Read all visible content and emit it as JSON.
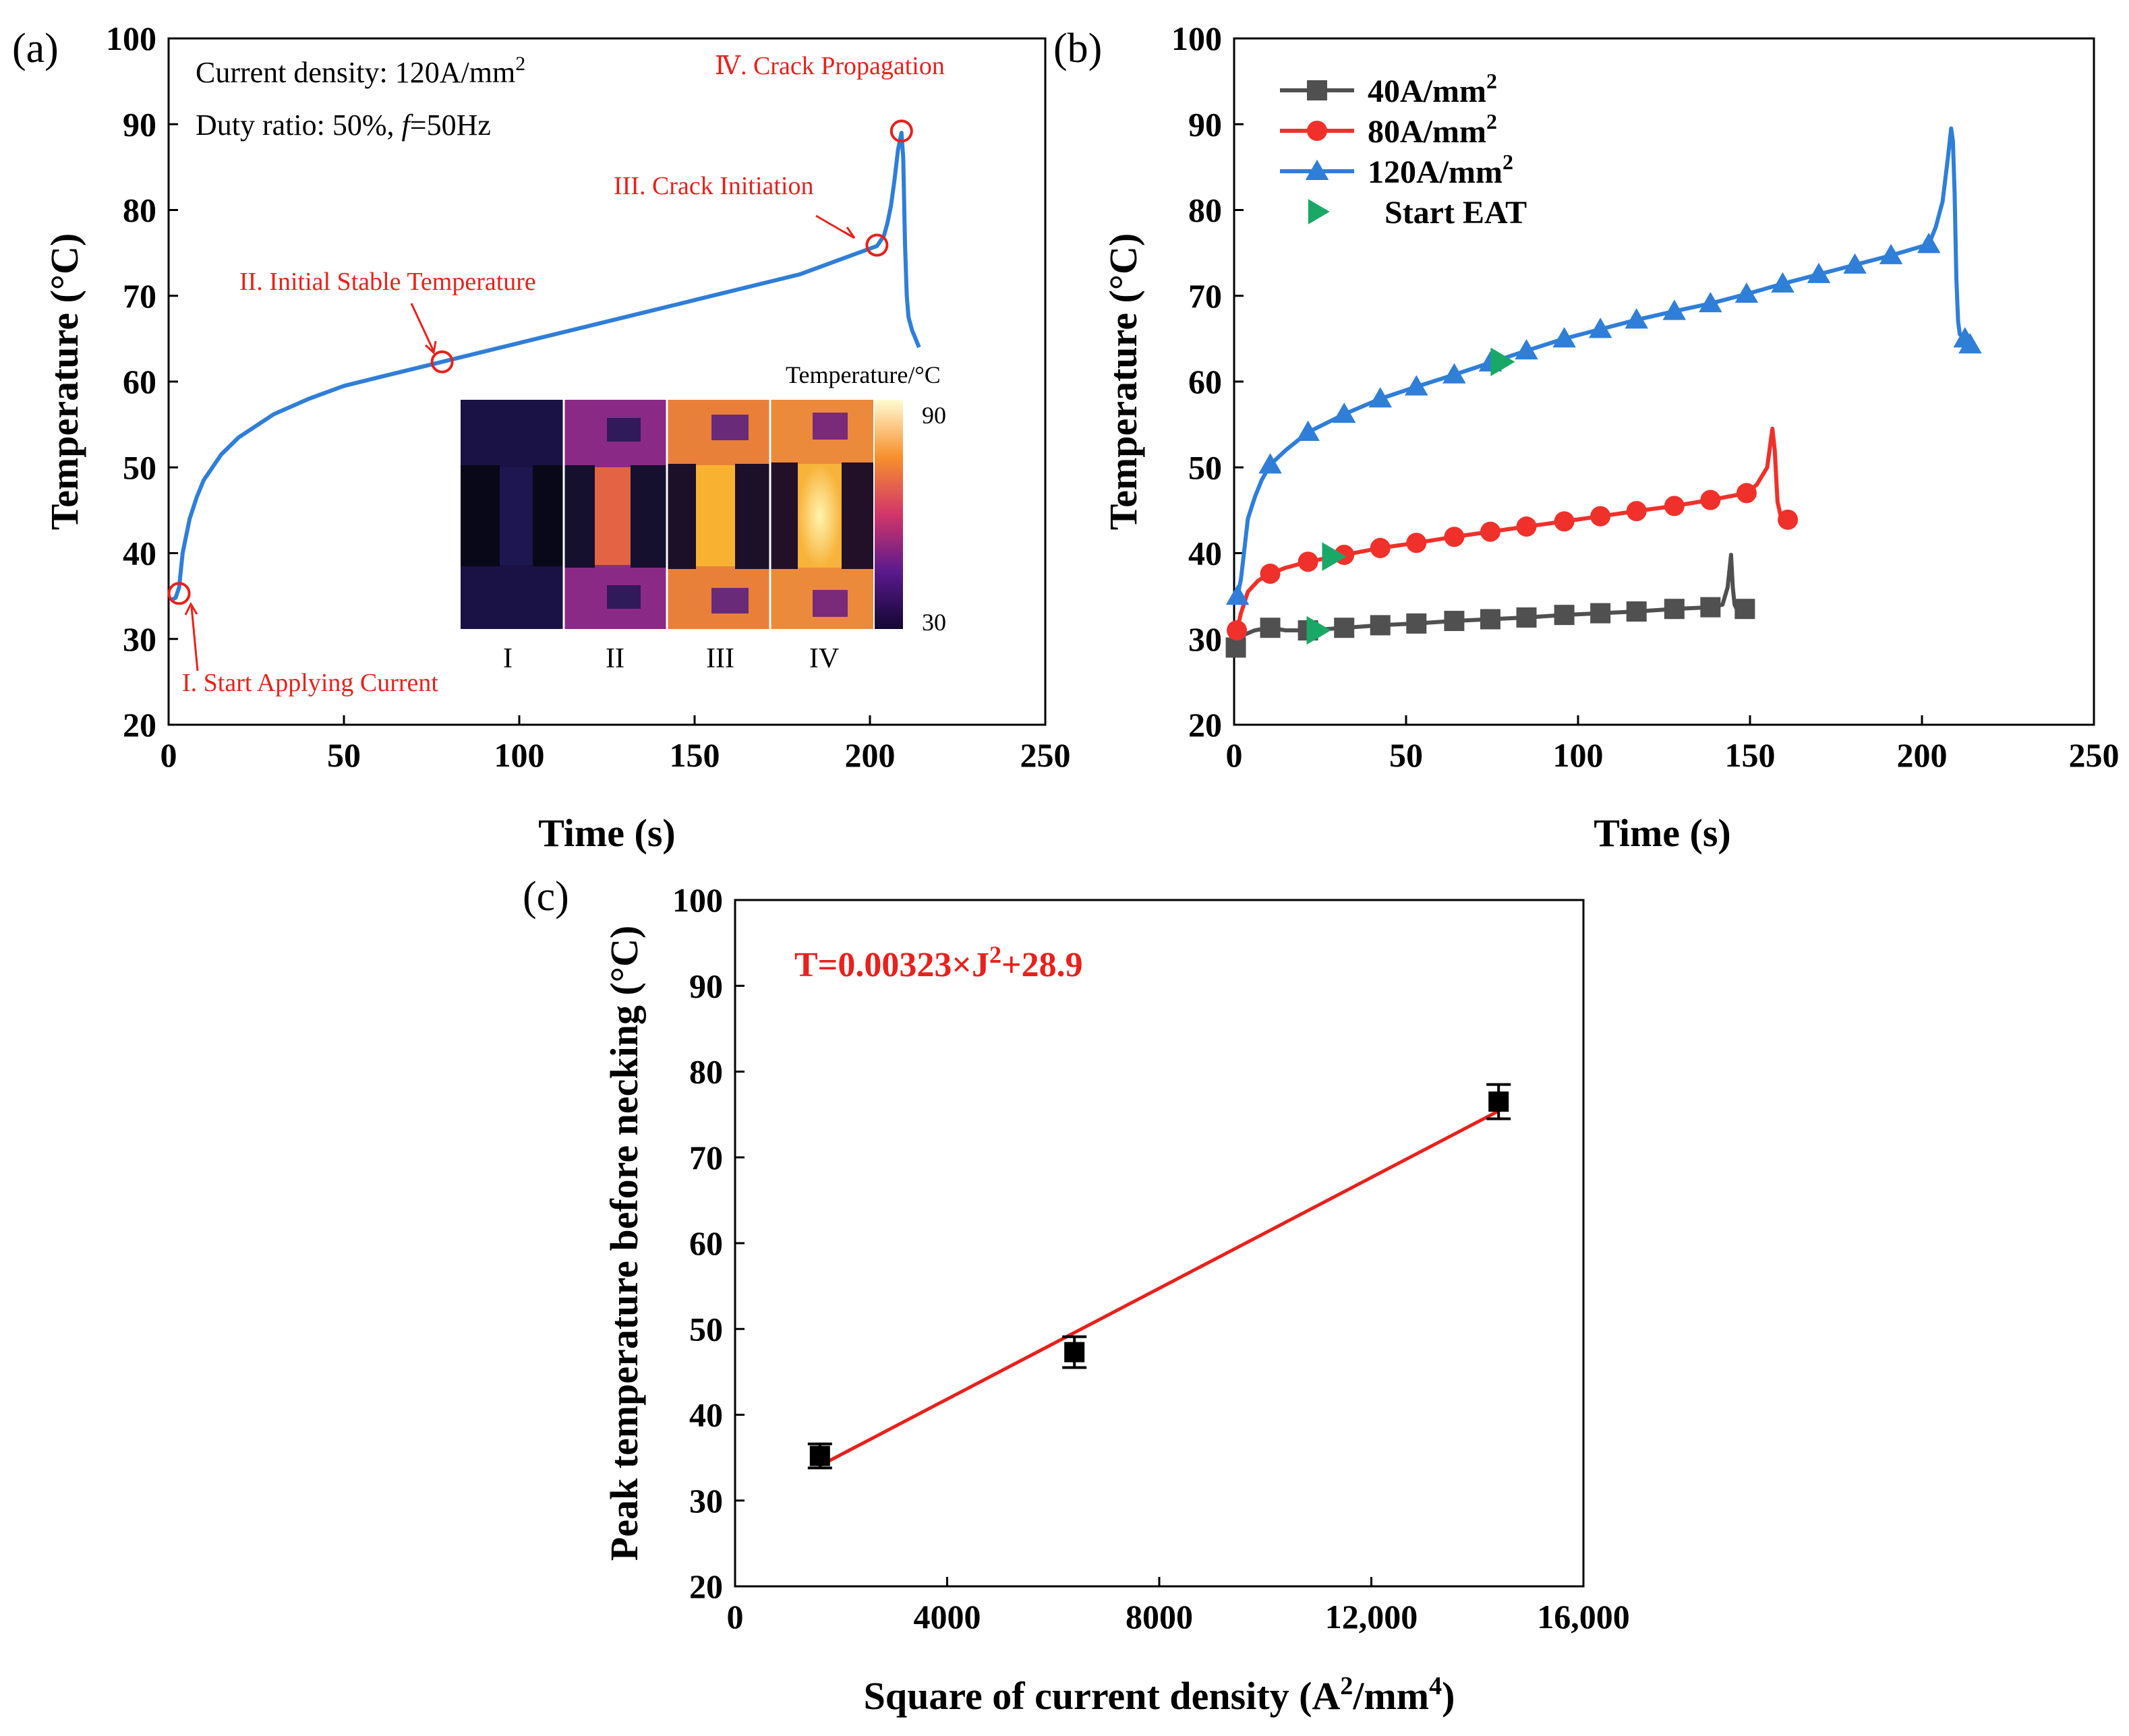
{
  "colors": {
    "blue": "#2f7ed8",
    "red": "#f0302a",
    "gray": "#505050",
    "green": "#1aa866",
    "annotation_red": "#e8211c",
    "fit_red": "#e8211c",
    "black": "#000000"
  },
  "chart_data": [
    {
      "id": "a",
      "type": "line",
      "panel_label": "(a)",
      "xlabel": "Time (s)",
      "ylabel": "Temperature (°C)",
      "xlim": [
        0,
        250
      ],
      "ylim": [
        20,
        100
      ],
      "xticks": [
        0,
        50,
        100,
        150,
        200,
        250
      ],
      "yticks": [
        20,
        30,
        40,
        50,
        60,
        70,
        80,
        90,
        100
      ],
      "notes": [
        "Current density: 120A/mm",
        "Duty ratio: 50%, ",
        "f",
        "=50Hz"
      ],
      "note_superscript": "2",
      "series": [
        {
          "color": "blue",
          "x": [
            0.5,
            2,
            3,
            4,
            6,
            8,
            10,
            15,
            20,
            30,
            40,
            50,
            60,
            78,
            100,
            120,
            150,
            180,
            202,
            204,
            205,
            206,
            207,
            208,
            209,
            209.5,
            210,
            210.5,
            211,
            212,
            213,
            214
          ],
          "y": [
            34.5,
            34.8,
            36,
            40,
            44,
            46.5,
            48.5,
            51.5,
            53.5,
            56.2,
            58,
            59.5,
            60.5,
            62.3,
            64.5,
            66.5,
            69.5,
            72.5,
            75.8,
            77,
            78.5,
            80.5,
            83.5,
            87,
            89,
            86,
            76,
            70,
            67.5,
            66,
            65,
            64
          ]
        }
      ],
      "markers": [
        {
          "x": 3,
          "y": 35.3
        },
        {
          "x": 78,
          "y": 62.3
        },
        {
          "x": 202,
          "y": 75.9
        },
        {
          "x": 209,
          "y": 89.2
        }
      ],
      "annotations": [
        "I. Start Applying Current",
        "II. Initial Stable Temperature",
        "III. Crack Initiation",
        "Ⅳ. Crack Propagation"
      ],
      "inset": {
        "title": "Temperature/°C",
        "scale_max": "90",
        "scale_min": "30",
        "stage_labels": [
          "I",
          "II",
          "III",
          "IV"
        ]
      }
    },
    {
      "id": "b",
      "type": "line",
      "panel_label": "(b)",
      "xlabel": "Time (s)",
      "ylabel": "Temperature (°C)",
      "xlim": [
        0,
        250
      ],
      "ylim": [
        20,
        100
      ],
      "xticks": [
        0,
        50,
        100,
        150,
        200,
        250
      ],
      "yticks": [
        20,
        30,
        40,
        50,
        60,
        70,
        80,
        90,
        100
      ],
      "legend": "top-left",
      "legend_superscript": "2",
      "series": [
        {
          "name": "40A/mm",
          "color": "gray",
          "marker": "square",
          "x": [
            0.5,
            1.5,
            3,
            6,
            10.5,
            15,
            21.5,
            32,
            42.5,
            53,
            64,
            74.5,
            85,
            96,
            106.5,
            117,
            128,
            138.5,
            142,
            143.5,
            144.5,
            145,
            145.5,
            146,
            147,
            148.5
          ],
          "y": [
            29,
            29.6,
            30.5,
            31,
            31.3,
            31.0,
            31.0,
            31.3,
            31.6,
            31.8,
            32.1,
            32.3,
            32.5,
            32.8,
            33.0,
            33.2,
            33.5,
            33.7,
            34,
            36,
            39.8,
            36,
            34,
            33.6,
            33.5,
            33.5
          ],
          "marker_x": [
            0.5,
            10.5,
            21.5,
            32,
            42.5,
            53,
            64,
            74.5,
            85,
            96,
            106.5,
            117,
            128,
            138.5,
            148.5
          ],
          "marker_y": [
            29,
            31.3,
            31.0,
            31.3,
            31.6,
            31.8,
            32.1,
            32.3,
            32.5,
            32.8,
            33.0,
            33.2,
            33.5,
            33.7,
            33.5
          ]
        },
        {
          "name": "80A/mm",
          "color": "red",
          "marker": "circle",
          "x": [
            0.8,
            2,
            4,
            7,
            10.5,
            15,
            21.5,
            32,
            42.5,
            53,
            64,
            74.5,
            85,
            96,
            106.5,
            117,
            128,
            138.5,
            149,
            152,
            155,
            156.5,
            157.2,
            158,
            159,
            160.5,
            162
          ],
          "y": [
            31,
            33,
            35.5,
            36.8,
            37.6,
            38.3,
            39,
            39.8,
            40.6,
            41.2,
            41.9,
            42.5,
            43.1,
            43.7,
            44.3,
            44.9,
            45.5,
            46.2,
            47.0,
            48,
            50,
            54.5,
            52,
            46,
            44.2,
            44,
            43.9
          ],
          "marker_x": [
            0.8,
            10.5,
            21.5,
            32,
            42.5,
            53,
            64,
            74.5,
            85,
            96,
            106.5,
            117,
            128,
            138.5,
            149,
            161
          ],
          "marker_y": [
            31,
            37.6,
            39,
            39.8,
            40.6,
            41.2,
            41.9,
            42.5,
            43.1,
            43.7,
            44.3,
            44.9,
            45.5,
            46.2,
            47.0,
            43.9
          ]
        },
        {
          "name": "120A/mm",
          "color": "blue",
          "marker": "triangle",
          "x": [
            1,
            2,
            3,
            4,
            6,
            8,
            10.5,
            15,
            21.5,
            32,
            42.5,
            53,
            64,
            74.5,
            85,
            96,
            106.5,
            117,
            128,
            138.5,
            149,
            159.5,
            170,
            180.5,
            191,
            202,
            204,
            206,
            207.5,
            208.5,
            209,
            209.5,
            210,
            210.5,
            211,
            212.5,
            214
          ],
          "y": [
            35,
            37,
            40.5,
            44,
            46.5,
            48.5,
            50.3,
            52,
            54.1,
            56.2,
            58,
            59.4,
            60.8,
            62.2,
            63.6,
            65,
            66.1,
            67.2,
            68.2,
            69.1,
            70.2,
            71.4,
            72.5,
            73.6,
            74.7,
            76,
            78,
            81,
            86,
            89.5,
            88,
            82,
            72,
            67,
            65.5,
            65,
            64.3
          ],
          "marker_x": [
            1,
            10.5,
            21.5,
            32,
            42.5,
            53,
            64,
            74.5,
            85,
            96,
            106.5,
            117,
            128,
            138.5,
            149,
            159.5,
            170,
            180.5,
            191,
            202,
            212.5,
            214
          ],
          "marker_y": [
            35,
            50.3,
            54.1,
            56.2,
            58,
            59.4,
            60.8,
            62.2,
            63.6,
            65,
            66.1,
            67.2,
            68.2,
            69.1,
            70.2,
            71.4,
            72.5,
            73.6,
            74.7,
            76,
            65,
            64.3
          ]
        },
        {
          "name": "Start EAT",
          "color": "green",
          "marker": "triangle-right",
          "x": [
            24,
            28.5,
            77.5
          ],
          "y": [
            31.0,
            39.6,
            62.3
          ]
        }
      ]
    },
    {
      "id": "c",
      "type": "scatter",
      "panel_label": "(c)",
      "xlabel_prefix": "Square of current density (A",
      "xlabel_mid": "/mm",
      "xlabel_suffix": ")",
      "xlabel_sup1": "2",
      "xlabel_sup2": "4",
      "ylabel": "Peak temperature before necking (°C)",
      "xlim": [
        0,
        16000
      ],
      "ylim": [
        20,
        100
      ],
      "xticks": [
        "0",
        "4000",
        "8000",
        "12,000",
        "16,000"
      ],
      "xtick_values": [
        0,
        4000,
        8000,
        12000,
        16000
      ],
      "yticks": [
        20,
        30,
        40,
        50,
        60,
        70,
        80,
        90,
        100
      ],
      "equation_prefix": "T=0.00323×J",
      "equation_sup": "2",
      "equation_suffix": "+28.9",
      "points": {
        "x": [
          1600,
          6400,
          14400
        ],
        "y": [
          35.2,
          47.3,
          76.5
        ],
        "yerr": [
          1.4,
          1.8,
          2.0
        ]
      },
      "fit": {
        "slope": 0.00323,
        "intercept": 28.9,
        "x_range": [
          1600,
          14400
        ]
      }
    }
  ]
}
